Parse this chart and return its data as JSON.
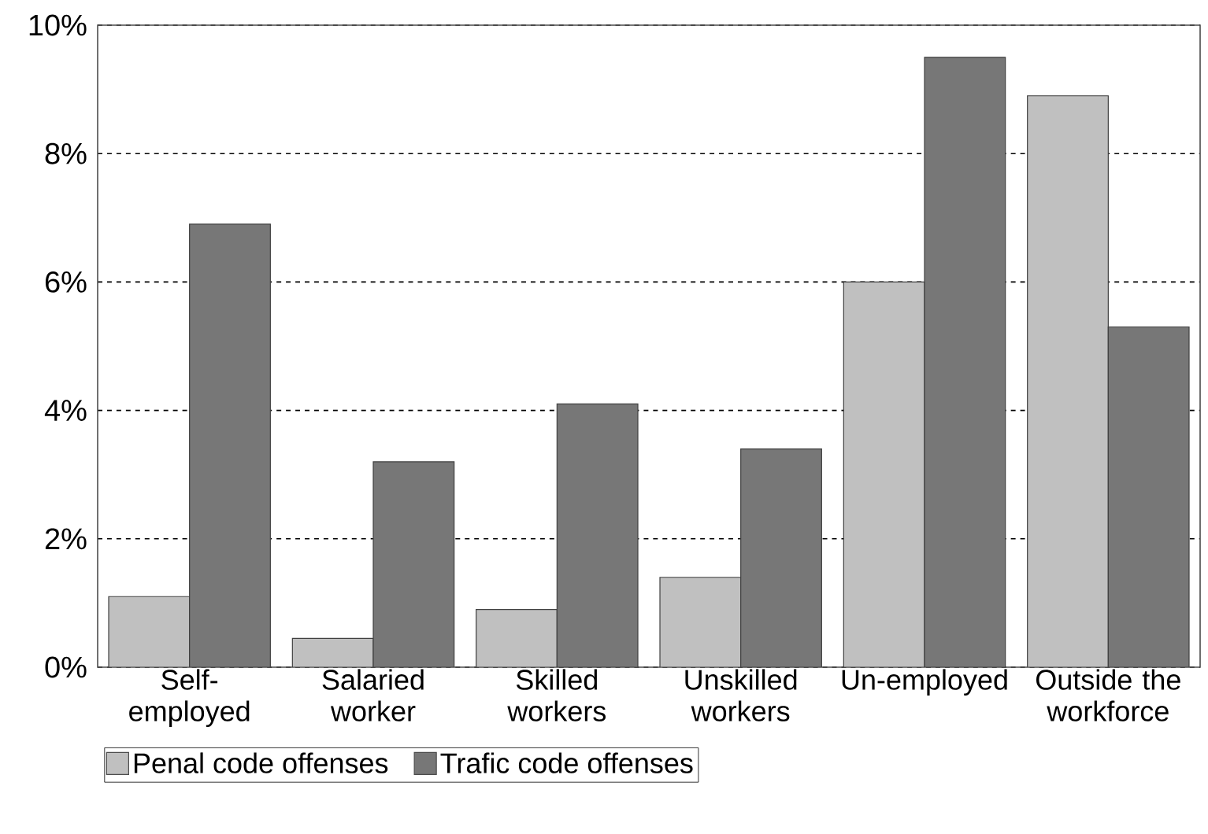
{
  "chart_data": {
    "type": "bar",
    "categories": [
      "Self-employed",
      "Salaried worker",
      "Skilled workers",
      "Unskilled workers",
      "Un-employed",
      "Outside the workforce"
    ],
    "series": [
      {
        "name": "Penal code offenses",
        "color": "#c0c0c0",
        "values": [
          1.1,
          0.45,
          0.9,
          1.4,
          6.0,
          8.9
        ]
      },
      {
        "name": "Trafic code offenses",
        "color": "#777777",
        "values": [
          6.9,
          3.2,
          4.1,
          3.4,
          9.5,
          5.3
        ]
      }
    ],
    "ylim": [
      0,
      10
    ],
    "yticks": [
      {
        "value": 0,
        "label": "0%"
      },
      {
        "value": 2,
        "label": "2%"
      },
      {
        "value": 4,
        "label": "4%"
      },
      {
        "value": 6,
        "label": "6%"
      },
      {
        "value": 8,
        "label": "8%"
      },
      {
        "value": 10,
        "label": "10%"
      }
    ],
    "grid": "y",
    "legend": "bottom"
  }
}
